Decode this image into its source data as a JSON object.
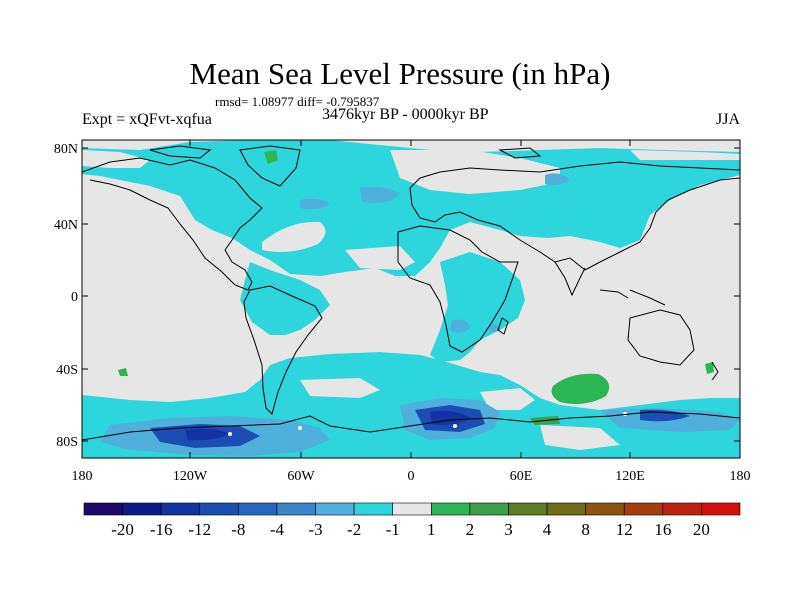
{
  "title": "Mean Sea Level Pressure (in hPa)",
  "stats": "rmsd= 1.08977 diff= -0.795837",
  "subtitle_left": "Expt = xQFvt-xqfua",
  "subtitle_center": "3476kyr BP - 0000kyr BP",
  "subtitle_right": "JJA",
  "lat_ticks": [
    "80N",
    "40N",
    "0",
    "40S",
    "80S"
  ],
  "lon_ticks": [
    "180",
    "120W",
    "60W",
    "0",
    "60E",
    "120E",
    "180"
  ],
  "colorbar": {
    "colors": [
      "#1d0a6b",
      "#0c1a8a",
      "#1233a4",
      "#1c4db3",
      "#2766c2",
      "#3a86cc",
      "#4fb0dc",
      "#2dd6dc",
      "#e6e6e6",
      "#2cb653",
      "#3ca04a",
      "#5c7d26",
      "#6e6d18",
      "#8c5311",
      "#a63c0d",
      "#bd2410",
      "#d40f0f"
    ],
    "labels": [
      "-20",
      "-16",
      "-12",
      "-8",
      "-4",
      "-3",
      "-2",
      "-1",
      "1",
      "2",
      "3",
      "4",
      "8",
      "12",
      "16",
      "20"
    ]
  },
  "map_colors": {
    "ocean_land_base": "#e6e6e6",
    "light_negative": "#2dd6dc",
    "moderate_negative": "#4fb0dc",
    "strong_negative": "#1233a4",
    "positive": "#2cb653",
    "coast": "#000000"
  }
}
